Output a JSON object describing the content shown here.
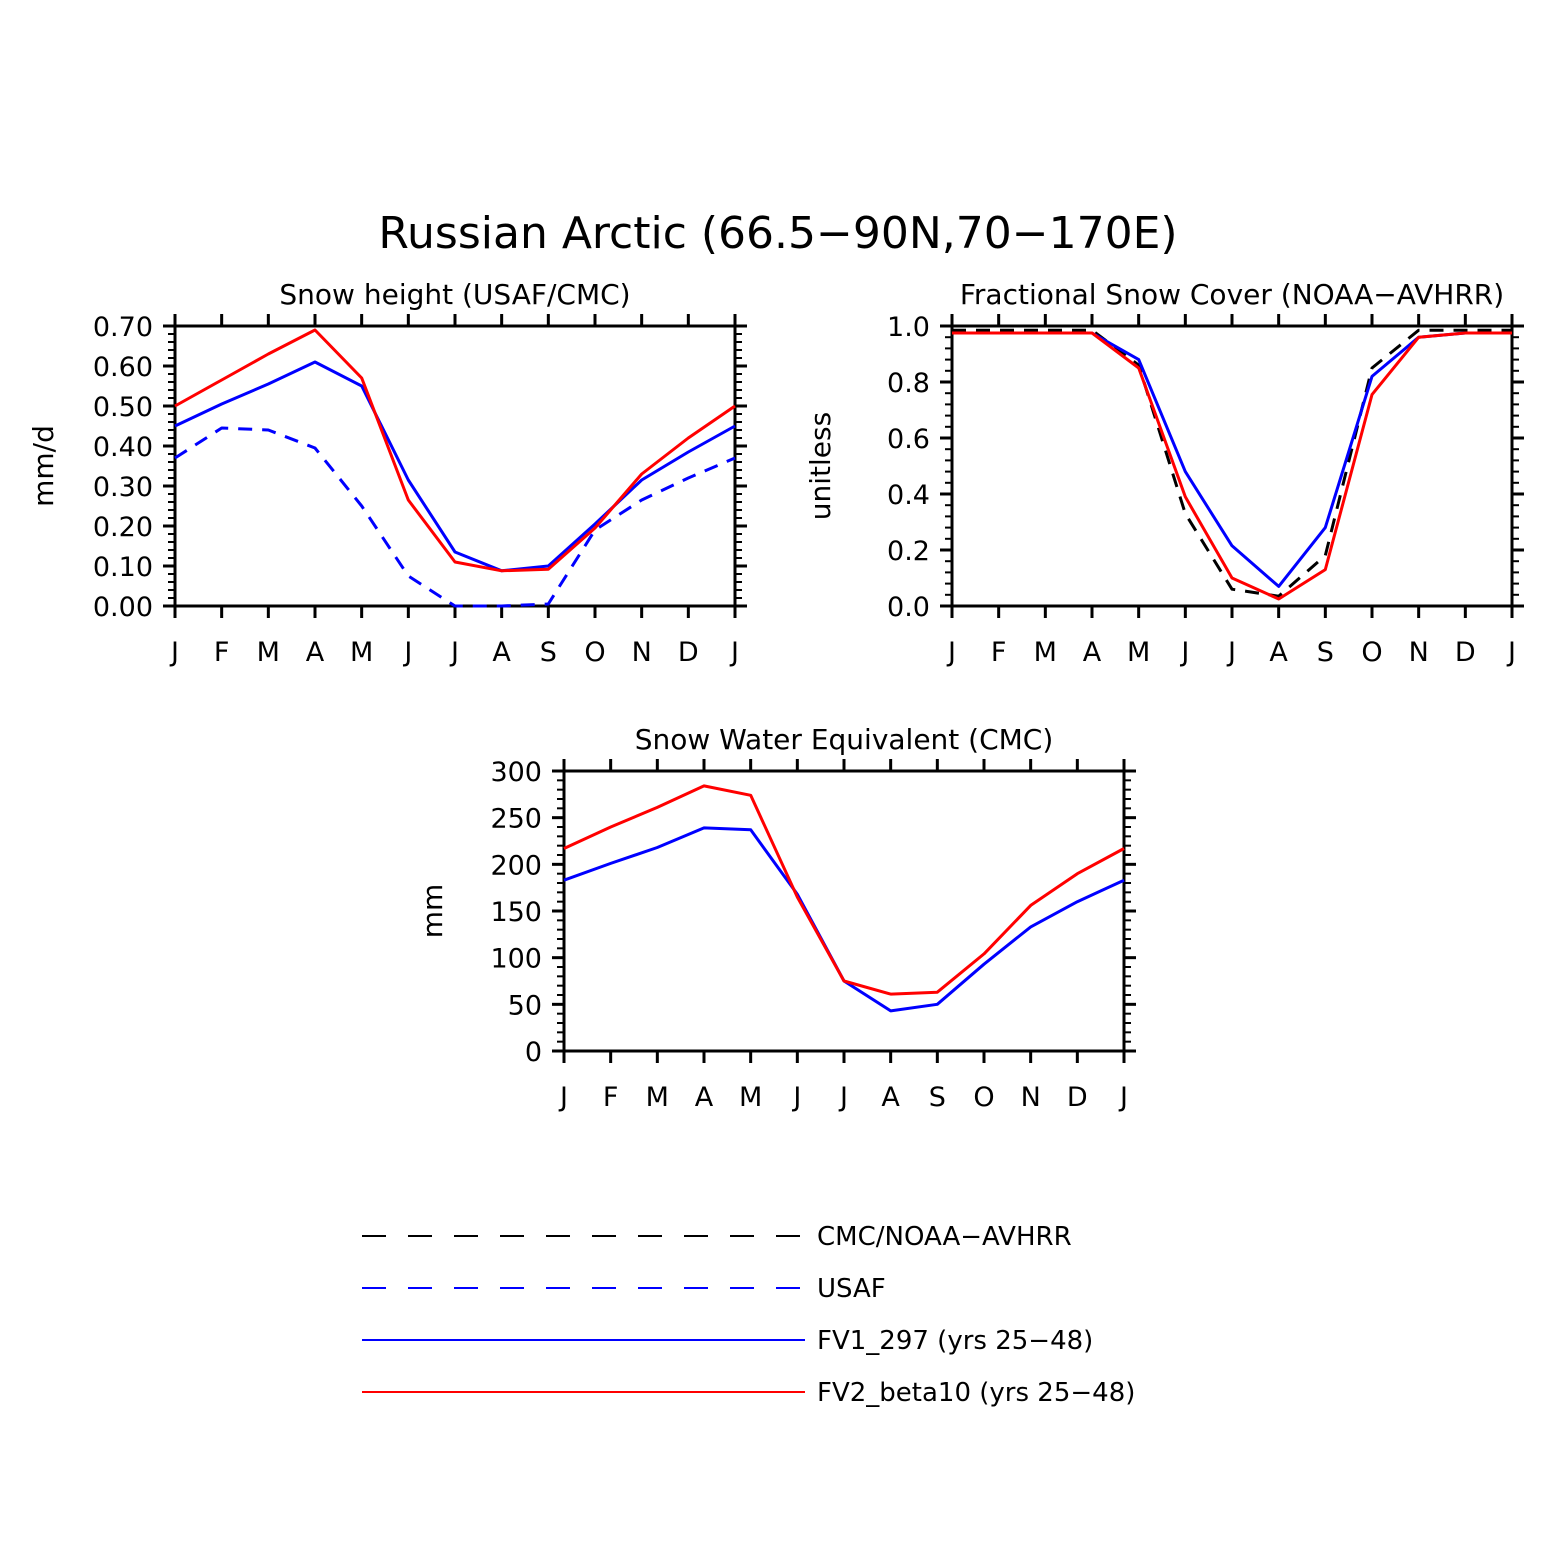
{
  "main_title": "Russian Arctic (66.5−90N,70−170E)",
  "colors": {
    "cmc_noaa": "#000000",
    "usaf": "#0000ff",
    "fv1": "#0000ff",
    "fv2": "#ff0000",
    "axis": "#000000"
  },
  "chart_data": [
    {
      "type": "line",
      "title": "Snow height (USAF/CMC)",
      "xlabel": "",
      "ylabel": "mm/d",
      "categories": [
        "J",
        "F",
        "M",
        "A",
        "M",
        "J",
        "J",
        "A",
        "S",
        "O",
        "N",
        "D",
        "J"
      ],
      "ylim": [
        0,
        0.7
      ],
      "yticks": [
        "0.00",
        "0.10",
        "0.20",
        "0.30",
        "0.40",
        "0.50",
        "0.60",
        "0.70"
      ],
      "ytick_values": [
        0,
        0.1,
        0.2,
        0.3,
        0.4,
        0.5,
        0.6,
        0.7
      ],
      "series": [
        {
          "name": "USAF",
          "style": "dashed",
          "color": "#0000ff",
          "values": [
            0.37,
            0.445,
            0.44,
            0.395,
            0.25,
            0.075,
            0.0,
            0.0,
            0.005,
            0.19,
            0.265,
            0.32,
            0.37
          ]
        },
        {
          "name": "FV1_297 (yrs 25-48)",
          "style": "solid",
          "color": "#0000ff",
          "values": [
            0.45,
            0.505,
            0.555,
            0.61,
            0.55,
            0.315,
            0.135,
            0.088,
            0.1,
            0.205,
            0.315,
            0.385,
            0.45
          ]
        },
        {
          "name": "FV2_beta10 (yrs 25-48)",
          "style": "solid",
          "color": "#ff0000",
          "values": [
            0.5,
            0.565,
            0.63,
            0.69,
            0.57,
            0.265,
            0.11,
            0.088,
            0.092,
            0.195,
            0.33,
            0.42,
            0.5
          ]
        }
      ]
    },
    {
      "type": "line",
      "title": "Fractional Snow Cover (NOAA−AVHRR)",
      "xlabel": "",
      "ylabel": "unitless",
      "categories": [
        "J",
        "F",
        "M",
        "A",
        "M",
        "J",
        "J",
        "A",
        "S",
        "O",
        "N",
        "D",
        "J"
      ],
      "ylim": [
        0,
        1.0
      ],
      "yticks": [
        "0.0",
        "0.2",
        "0.4",
        "0.6",
        "0.8",
        "1.0"
      ],
      "ytick_values": [
        0,
        0.2,
        0.4,
        0.6,
        0.8,
        1.0
      ],
      "series": [
        {
          "name": "CMC/NOAA-AVHRR",
          "style": "dashed",
          "color": "#000000",
          "values": [
            0.985,
            0.985,
            0.985,
            0.985,
            0.86,
            0.33,
            0.06,
            0.035,
            0.18,
            0.85,
            0.985,
            0.985,
            0.985
          ]
        },
        {
          "name": "FV1_297 (yrs 25-48)",
          "style": "solid",
          "color": "#0000ff",
          "values": [
            0.975,
            0.975,
            0.975,
            0.975,
            0.88,
            0.48,
            0.215,
            0.07,
            0.28,
            0.82,
            0.96,
            0.975,
            0.975
          ]
        },
        {
          "name": "FV2_beta10 (yrs 25-48)",
          "style": "solid",
          "color": "#ff0000",
          "values": [
            0.975,
            0.975,
            0.975,
            0.975,
            0.85,
            0.39,
            0.1,
            0.025,
            0.13,
            0.755,
            0.96,
            0.975,
            0.975
          ]
        }
      ]
    },
    {
      "type": "line",
      "title": "Snow Water Equivalent (CMC)",
      "xlabel": "",
      "ylabel": "mm",
      "categories": [
        "J",
        "F",
        "M",
        "A",
        "M",
        "J",
        "J",
        "A",
        "S",
        "O",
        "N",
        "D",
        "J"
      ],
      "ylim": [
        0,
        300
      ],
      "yticks": [
        "0",
        "50",
        "100",
        "150",
        "200",
        "250",
        "300"
      ],
      "ytick_values": [
        0,
        50,
        100,
        150,
        200,
        250,
        300
      ],
      "series": [
        {
          "name": "FV1_297 (yrs 25-48)",
          "style": "solid",
          "color": "#0000ff",
          "values": [
            183,
            201,
            218,
            239,
            237,
            168,
            75,
            43,
            50,
            93,
            133,
            160,
            183
          ]
        },
        {
          "name": "FV2_beta10 (yrs 25-48)",
          "style": "solid",
          "color": "#ff0000",
          "values": [
            217,
            240,
            261,
            284,
            274,
            165,
            75,
            61,
            63,
            104,
            156,
            190,
            217
          ]
        }
      ]
    }
  ],
  "legend": [
    {
      "label": "CMC/NOAA−AVHRR",
      "style": "dashed-long",
      "color": "#000000"
    },
    {
      "label": "USAF",
      "style": "dashed-long",
      "color": "#0000ff"
    },
    {
      "label": "FV1_297 (yrs 25−48)",
      "style": "solid",
      "color": "#0000ff"
    },
    {
      "label": "FV2_beta10 (yrs 25−48)",
      "style": "solid",
      "color": "#ff0000"
    }
  ]
}
